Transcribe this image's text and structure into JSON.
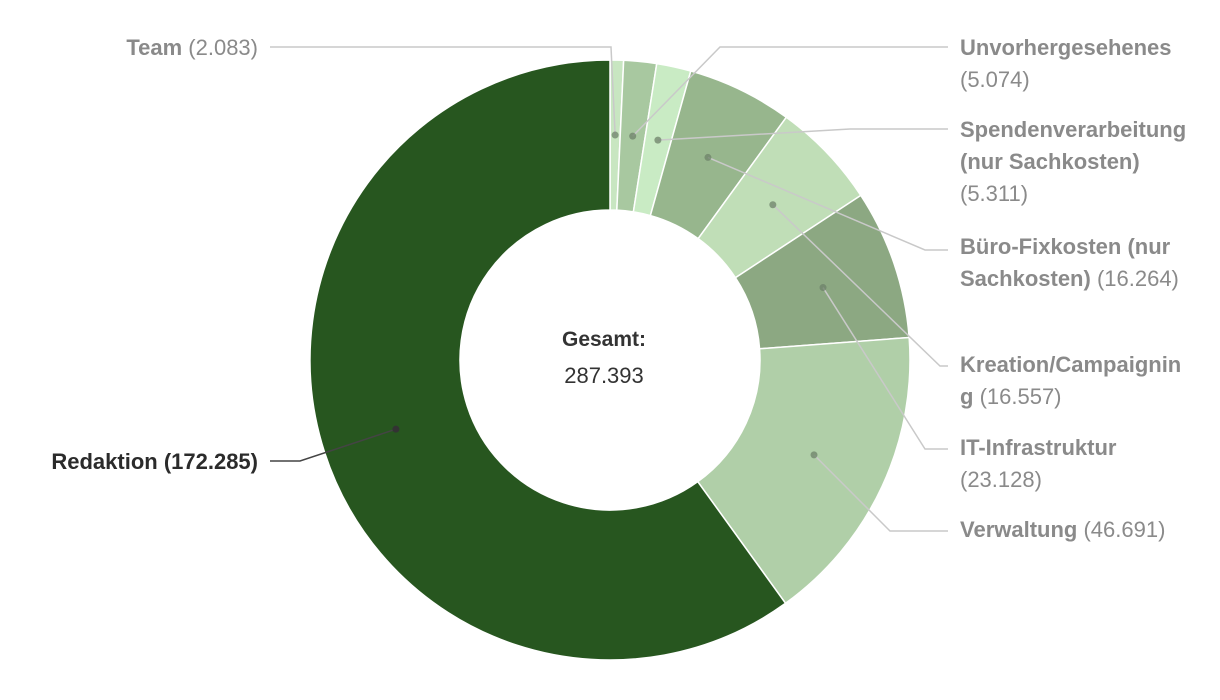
{
  "chart_data": {
    "type": "pie",
    "donut": true,
    "center": {
      "title": "Gesamt:",
      "value": "287.393"
    },
    "series": [
      {
        "name": "Team",
        "value_label": "2.083",
        "value": 2083,
        "color": "#c8e6c1"
      },
      {
        "name": "Unvorhergesehenes",
        "value_label": "5.074",
        "value": 5074,
        "color": "#a8c8a0"
      },
      {
        "name": "Spendenverarbeitung (nur Sachkosten)",
        "value_label": "5.311",
        "value": 5311,
        "color": "#c9ebc4"
      },
      {
        "name": "Büro-Fixkosten (nur Sachkosten)",
        "value_label": "16.264",
        "value": 16264,
        "color": "#97b68d"
      },
      {
        "name": "Kreation/Campaigning",
        "value_label": "16.557",
        "value": 16557,
        "color": "#c0deb7"
      },
      {
        "name": "IT-Infrastruktur",
        "value_label": "23.128",
        "value": 23128,
        "color": "#8ca882"
      },
      {
        "name": "Verwaltung",
        "value_label": "46.691",
        "value": 46691,
        "color": "#b0cfa8"
      },
      {
        "name": "Redaktion",
        "value_label": "172.285",
        "value": 172285,
        "color": "#27561f"
      }
    ],
    "label_color": "#8a8a8a",
    "highlight_label_color": "#2b2b2b",
    "highlight_series": "Redaktion"
  }
}
